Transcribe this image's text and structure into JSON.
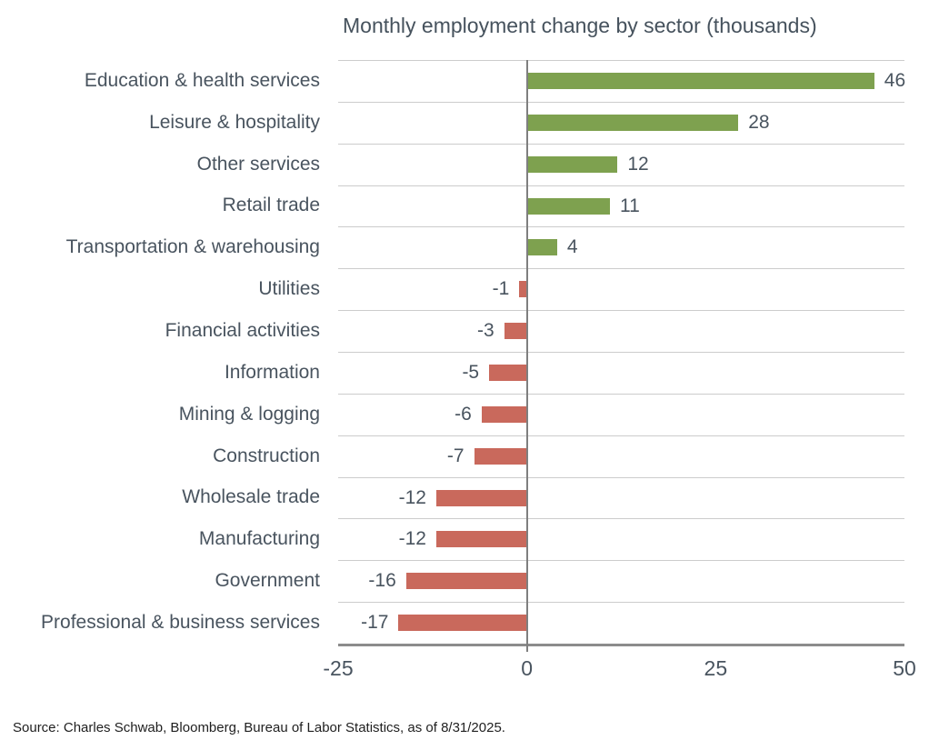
{
  "chart": {
    "title": "Monthly employment change by sector (thousands)"
  },
  "source": "Source: Charles Schwab, Bloomberg, Bureau of Labor Statistics, as of 8/31/2025.",
  "chart_data": {
    "type": "bar",
    "orientation": "horizontal",
    "title": "Monthly employment change by sector (thousands)",
    "categories": [
      "Education & health services",
      "Leisure & hospitality",
      "Other services",
      "Retail trade",
      "Transportation & warehousing",
      "Utilities",
      "Financial activities",
      "Information",
      "Mining & logging",
      "Construction",
      "Wholesale trade",
      "Manufacturing",
      "Government",
      "Professional & business services"
    ],
    "values": [
      46,
      28,
      12,
      11,
      4,
      -1,
      -3,
      -5,
      -6,
      -7,
      -12,
      -12,
      -16,
      -17
    ],
    "xlabel": "",
    "ylabel": "",
    "xlim": [
      -25,
      50
    ],
    "xticks": [
      -25,
      0,
      25,
      50
    ],
    "grid": "row-separators",
    "legend": "none",
    "colors": {
      "positive": "#7ea14f",
      "negative": "#c9695c",
      "gridline": "#cccccc",
      "zero_axis": "#7f7f7f",
      "bottom_axis": "#8c8c8c",
      "text": "#49545f"
    }
  }
}
